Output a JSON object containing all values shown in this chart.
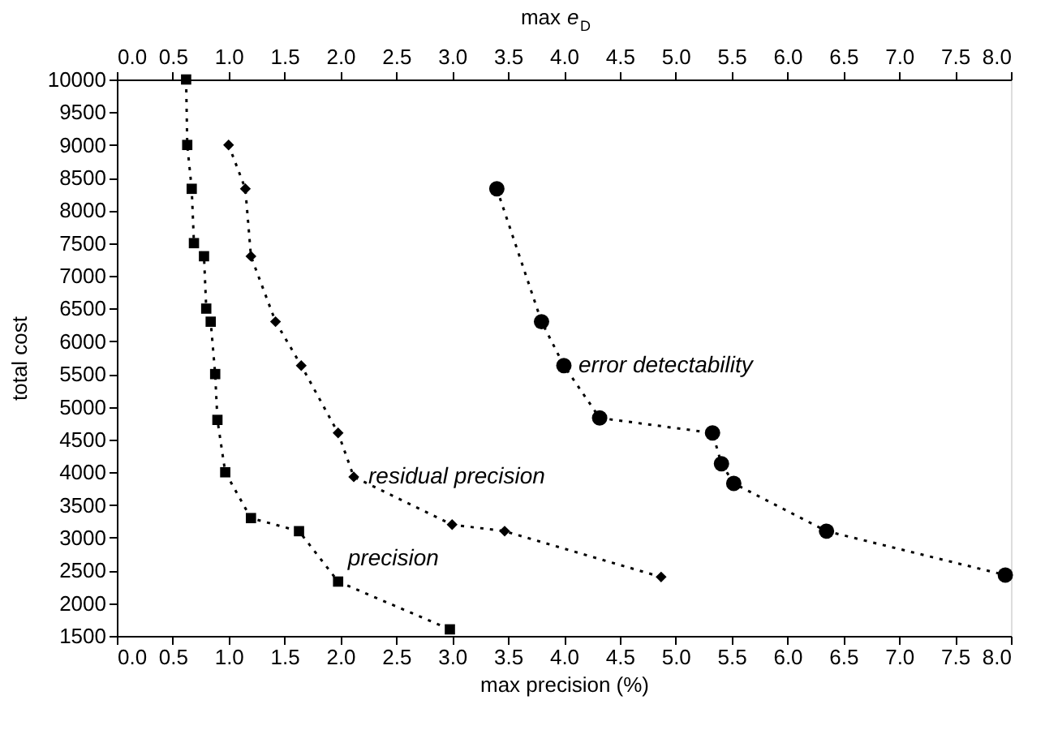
{
  "chart_data": {
    "type": "line",
    "xlabel": "max  precision (%)",
    "x2label": "max e$_{D}$",
    "ylabel": "total cost",
    "xlim": [
      0,
      8
    ],
    "x2lim": [
      0,
      8
    ],
    "xticks": [
      {
        "value": 0,
        "label": "0.0"
      },
      {
        "value": 0.5,
        "label": "0.5"
      },
      {
        "value": 1,
        "label": "1.0"
      },
      {
        "value": 1.5,
        "label": "1.5"
      },
      {
        "value": 2,
        "label": "2.0"
      },
      {
        "value": 2.5,
        "label": "2.5"
      },
      {
        "value": 3,
        "label": "3.0"
      },
      {
        "value": 3.5,
        "label": "3.5"
      },
      {
        "value": 4,
        "label": "4.0"
      },
      {
        "value": 4.5,
        "label": "4.5"
      },
      {
        "value": 5,
        "label": "5.0"
      },
      {
        "value": 5.5,
        "label": "5.5"
      },
      {
        "value": 6,
        "label": "6.0"
      },
      {
        "value": 6.5,
        "label": "6.5"
      },
      {
        "value": 7,
        "label": "7.0"
      },
      {
        "value": 7.5,
        "label": "7.5"
      },
      {
        "value": 8,
        "label": "8.0"
      }
    ],
    "x2ticks": [
      {
        "value": 0,
        "label": "0.0"
      },
      {
        "value": 0.5,
        "label": "0.5"
      },
      {
        "value": 1,
        "label": "1.0"
      },
      {
        "value": 1.5,
        "label": "1.5"
      },
      {
        "value": 2,
        "label": "2.0"
      },
      {
        "value": 2.5,
        "label": "2.5"
      },
      {
        "value": 3,
        "label": "3.0"
      },
      {
        "value": 3.5,
        "label": "3.5"
      },
      {
        "value": 4,
        "label": "4.0"
      },
      {
        "value": 4.5,
        "label": "4.5"
      },
      {
        "value": 5,
        "label": "5.0"
      },
      {
        "value": 5.5,
        "label": "5.5"
      },
      {
        "value": 6,
        "label": "6.0"
      },
      {
        "value": 6.5,
        "label": "6.5"
      },
      {
        "value": 7,
        "label": "7.0"
      },
      {
        "value": 7.5,
        "label": "7.5"
      },
      {
        "value": 8,
        "label": "8.0"
      }
    ],
    "ylim": [
      1500,
      10000
    ],
    "yticks": [
      1500,
      2000,
      2500,
      3000,
      3500,
      4000,
      4500,
      5000,
      5500,
      6000,
      6500,
      7000,
      7500,
      8000,
      8500,
      9000,
      9500,
      10000
    ],
    "grid": false,
    "legend": false,
    "line_style": "dotted",
    "series": [
      {
        "name": "precision",
        "color": "#000000",
        "marker": "square",
        "x": [
          0.62,
          0.63,
          0.67,
          0.69,
          0.78,
          0.8,
          0.84,
          0.88,
          0.9,
          0.97,
          1.2,
          1.63,
          1.98,
          2.98
        ],
        "values": [
          10000,
          9000,
          8330,
          7500,
          7300,
          6500,
          6300,
          5500,
          4800,
          4000,
          3300,
          3100,
          2330,
          1600
        ]
      },
      {
        "name": "residual precision",
        "color": "#000000",
        "marker": "diamond",
        "x": [
          1.0,
          1.15,
          1.2,
          1.42,
          1.65,
          1.98,
          2.12,
          3.0,
          3.47,
          4.87
        ],
        "values": [
          9000,
          8330,
          7300,
          6300,
          5630,
          4600,
          3930,
          3200,
          3100,
          2400
        ]
      },
      {
        "name": "error detectability",
        "color": "#000000",
        "marker": "circle",
        "axis": "x2",
        "x": [
          3.4,
          3.8,
          4.0,
          4.32,
          5.33,
          5.41,
          5.52,
          6.35,
          7.95
        ],
        "values": [
          8330,
          6300,
          5630,
          4830,
          4600,
          4130,
          3830,
          3100,
          2430
        ]
      }
    ]
  }
}
